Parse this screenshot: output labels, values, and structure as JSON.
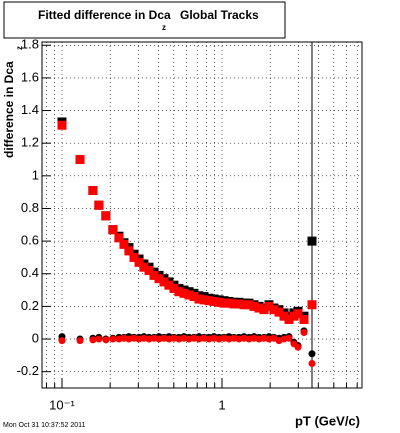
{
  "chart_data": {
    "type": "scatter",
    "title": "Fitted difference in Dca",
    "title_subscript": "z",
    "title_rest": "Global Tracks",
    "y_label": "difference in Dca",
    "y_label_subscript": "z",
    "x_label": "pT (GeV/c)",
    "footer": "Mon Oct 31 10:37:52 2011",
    "log_x": true,
    "grid": true,
    "xlim": [
      0.075,
      7.5
    ],
    "ylim": [
      -0.3,
      1.82
    ],
    "xticks": [
      {
        "value": 0.1,
        "label": "10⁻¹"
      },
      {
        "value": 1,
        "label": "1"
      }
    ],
    "xminor": [
      0.08,
      0.09,
      0.2,
      0.3,
      0.4,
      0.5,
      0.6,
      0.7,
      0.8,
      0.9,
      2,
      3,
      4,
      5,
      6,
      7
    ],
    "yticks": [
      -0.2,
      0,
      0.2,
      0.4,
      0.6,
      0.8,
      1,
      1.2,
      1.4,
      1.6,
      1.8
    ],
    "x": [
      0.1,
      0.1296,
      0.156,
      0.17,
      0.188,
      0.208,
      0.227,
      0.244,
      0.262,
      0.282,
      0.303,
      0.325,
      0.35,
      0.376,
      0.404,
      0.434,
      0.466,
      0.501,
      0.538,
      0.579,
      0.622,
      0.668,
      0.718,
      0.772,
      0.83,
      0.891,
      0.958,
      1.03,
      1.106,
      1.189,
      1.277,
      1.373,
      1.475,
      1.585,
      1.703,
      1.83,
      1.967,
      2.113,
      2.271,
      2.441,
      2.623,
      2.818,
      2.985,
      3.255,
      3.652
    ],
    "series": [
      {
        "color": "#000000",
        "marker": "square",
        "values": [
          1.33,
          1.1,
          0.91,
          0.82,
          0.755,
          0.67,
          0.63,
          0.59,
          0.56,
          0.52,
          0.49,
          0.46,
          0.44,
          0.41,
          0.39,
          0.37,
          0.35,
          0.33,
          0.31,
          0.3,
          0.29,
          0.28,
          0.265,
          0.26,
          0.25,
          0.245,
          0.24,
          0.235,
          0.23,
          0.225,
          0.225,
          0.22,
          0.22,
          0.21,
          0.2,
          0.19,
          0.21,
          0.19,
          0.18,
          0.16,
          0.14,
          0.16,
          0.17,
          0.14,
          0.6
        ],
        "errors": [
          null,
          null,
          null,
          null,
          null,
          null,
          null,
          null,
          null,
          null,
          null,
          null,
          null,
          null,
          null,
          null,
          null,
          null,
          null,
          null,
          null,
          null,
          null,
          null,
          null,
          null,
          null,
          null,
          null,
          null,
          null,
          null,
          null,
          null,
          null,
          null,
          null,
          null,
          null,
          null,
          null,
          null,
          null,
          null,
          2.5
        ]
      },
      {
        "color": "#ff0000",
        "marker": "square",
        "values": [
          1.31,
          1.1,
          0.91,
          0.82,
          0.755,
          0.67,
          0.62,
          0.58,
          0.54,
          0.5,
          0.47,
          0.44,
          0.42,
          0.39,
          0.37,
          0.35,
          0.33,
          0.31,
          0.29,
          0.28,
          0.27,
          0.26,
          0.245,
          0.24,
          0.235,
          0.23,
          0.225,
          0.22,
          0.22,
          0.215,
          0.215,
          0.21,
          0.21,
          0.2,
          0.19,
          0.18,
          0.2,
          0.18,
          0.165,
          0.14,
          0.12,
          0.14,
          0.155,
          0.12,
          0.21
        ]
      },
      {
        "color": "#000000",
        "marker": "circle",
        "values": [
          0.015,
          0.0,
          0.005,
          0.01,
          0.0,
          0.005,
          0.01,
          0.01,
          0.015,
          0.01,
          0.01,
          0.015,
          0.01,
          0.01,
          0.015,
          0.01,
          0.015,
          0.01,
          0.01,
          0.015,
          0.01,
          0.01,
          0.015,
          0.01,
          0.01,
          0.015,
          0.01,
          0.01,
          0.015,
          0.01,
          0.01,
          0.015,
          0.01,
          0.015,
          0.01,
          0.01,
          0.015,
          0.01,
          0.005,
          0.01,
          0.015,
          -0.02,
          -0.04,
          0.05,
          -0.09
        ]
      },
      {
        "color": "#ff0000",
        "marker": "circle",
        "values": [
          -0.01,
          -0.01,
          -0.005,
          0.0,
          -0.005,
          0.0,
          0.0,
          0.005,
          0.0,
          0.005,
          0.0,
          0.005,
          0.0,
          0.005,
          0.0,
          0.005,
          0.0,
          0.005,
          0.0,
          0.005,
          0.0,
          0.005,
          0.0,
          0.005,
          0.0,
          0.005,
          0.0,
          0.005,
          0.0,
          0.005,
          0.0,
          0.005,
          0.0,
          0.005,
          0.0,
          0.005,
          0.0,
          0.005,
          -0.01,
          0.0,
          0.005,
          -0.03,
          -0.05,
          0.04,
          -0.15
        ]
      }
    ]
  }
}
